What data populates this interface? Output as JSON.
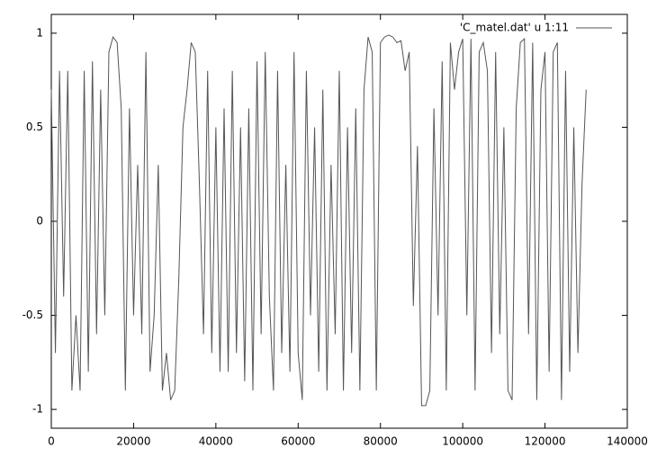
{
  "chart_data": {
    "type": "line",
    "x": [
      0,
      1000,
      2000,
      3000,
      4000,
      5000,
      6000,
      7000,
      8000,
      9000,
      10000,
      11000,
      12000,
      13000,
      14000,
      15000,
      16000,
      17000,
      18000,
      19000,
      20000,
      21000,
      22000,
      23000,
      24000,
      25000,
      26000,
      27000,
      28000,
      29000,
      30000,
      31000,
      32000,
      33000,
      34000,
      35000,
      36000,
      37000,
      38000,
      39000,
      40000,
      41000,
      42000,
      43000,
      44000,
      45000,
      46000,
      47000,
      48000,
      49000,
      50000,
      51000,
      52000,
      53000,
      54000,
      55000,
      56000,
      57000,
      58000,
      59000,
      60000,
      61000,
      62000,
      63000,
      64000,
      65000,
      66000,
      67000,
      68000,
      69000,
      70000,
      71000,
      72000,
      73000,
      74000,
      75000,
      76000,
      77000,
      78000,
      79000,
      80000,
      81000,
      82000,
      83000,
      84000,
      85000,
      86000,
      87000,
      88000,
      89000,
      90000,
      91000,
      92000,
      93000,
      94000,
      95000,
      96000,
      97000,
      98000,
      99000,
      100000,
      101000,
      102000,
      103000,
      104000,
      105000,
      106000,
      107000,
      108000,
      109000,
      110000,
      111000,
      112000,
      113000,
      114000,
      115000,
      116000,
      117000,
      118000,
      119000,
      120000,
      121000,
      122000,
      123000,
      124000,
      125000,
      126000,
      127000,
      128000,
      129000,
      130000
    ],
    "series": [
      {
        "name": "'C_matel.dat' u 1:11",
        "color": "#555555",
        "values": [
          0.7,
          -0.7,
          0.8,
          -0.4,
          0.8,
          -0.9,
          -0.5,
          -0.9,
          0.8,
          -0.8,
          0.85,
          -0.6,
          0.7,
          -0.5,
          0.9,
          0.98,
          0.95,
          0.6,
          -0.9,
          0.6,
          -0.5,
          0.3,
          -0.6,
          0.9,
          -0.8,
          -0.5,
          0.3,
          -0.9,
          -0.7,
          -0.95,
          -0.9,
          -0.3,
          0.5,
          0.7,
          0.95,
          0.9,
          0.2,
          -0.6,
          0.8,
          -0.7,
          0.5,
          -0.8,
          0.6,
          -0.8,
          0.8,
          -0.7,
          0.5,
          -0.85,
          0.6,
          -0.9,
          0.85,
          -0.6,
          0.9,
          -0.4,
          -0.9,
          0.8,
          -0.7,
          0.3,
          -0.8,
          0.9,
          -0.7,
          -0.95,
          0.8,
          -0.5,
          0.5,
          -0.8,
          0.7,
          -0.9,
          0.3,
          -0.6,
          0.8,
          -0.9,
          0.5,
          -0.7,
          0.6,
          -0.9,
          0.7,
          0.98,
          0.9,
          -0.9,
          0.95,
          0.98,
          0.99,
          0.98,
          0.95,
          0.96,
          0.8,
          0.9,
          -0.45,
          0.4,
          -0.98,
          -0.98,
          -0.9,
          0.6,
          -0.5,
          0.85,
          -0.9,
          0.95,
          0.7,
          0.9,
          0.97,
          -0.5,
          0.97,
          -0.9,
          0.9,
          0.95,
          0.8,
          -0.7,
          0.9,
          -0.6,
          0.5,
          -0.9,
          -0.95,
          0.6,
          0.95,
          0.97,
          -0.6,
          0.95,
          -0.95,
          0.7,
          0.9,
          -0.8,
          0.9,
          0.95,
          -0.95,
          0.8,
          -0.8,
          0.5,
          -0.7,
          0.2,
          0.7
        ]
      }
    ],
    "xlim": [
      0,
      140000
    ],
    "xticks": [
      0,
      20000,
      40000,
      60000,
      80000,
      100000,
      120000,
      140000
    ],
    "ylim": [
      -1.1,
      1.1
    ],
    "yticks": [
      -1,
      -0.5,
      0,
      0.5,
      1
    ],
    "legend": "top-right"
  }
}
